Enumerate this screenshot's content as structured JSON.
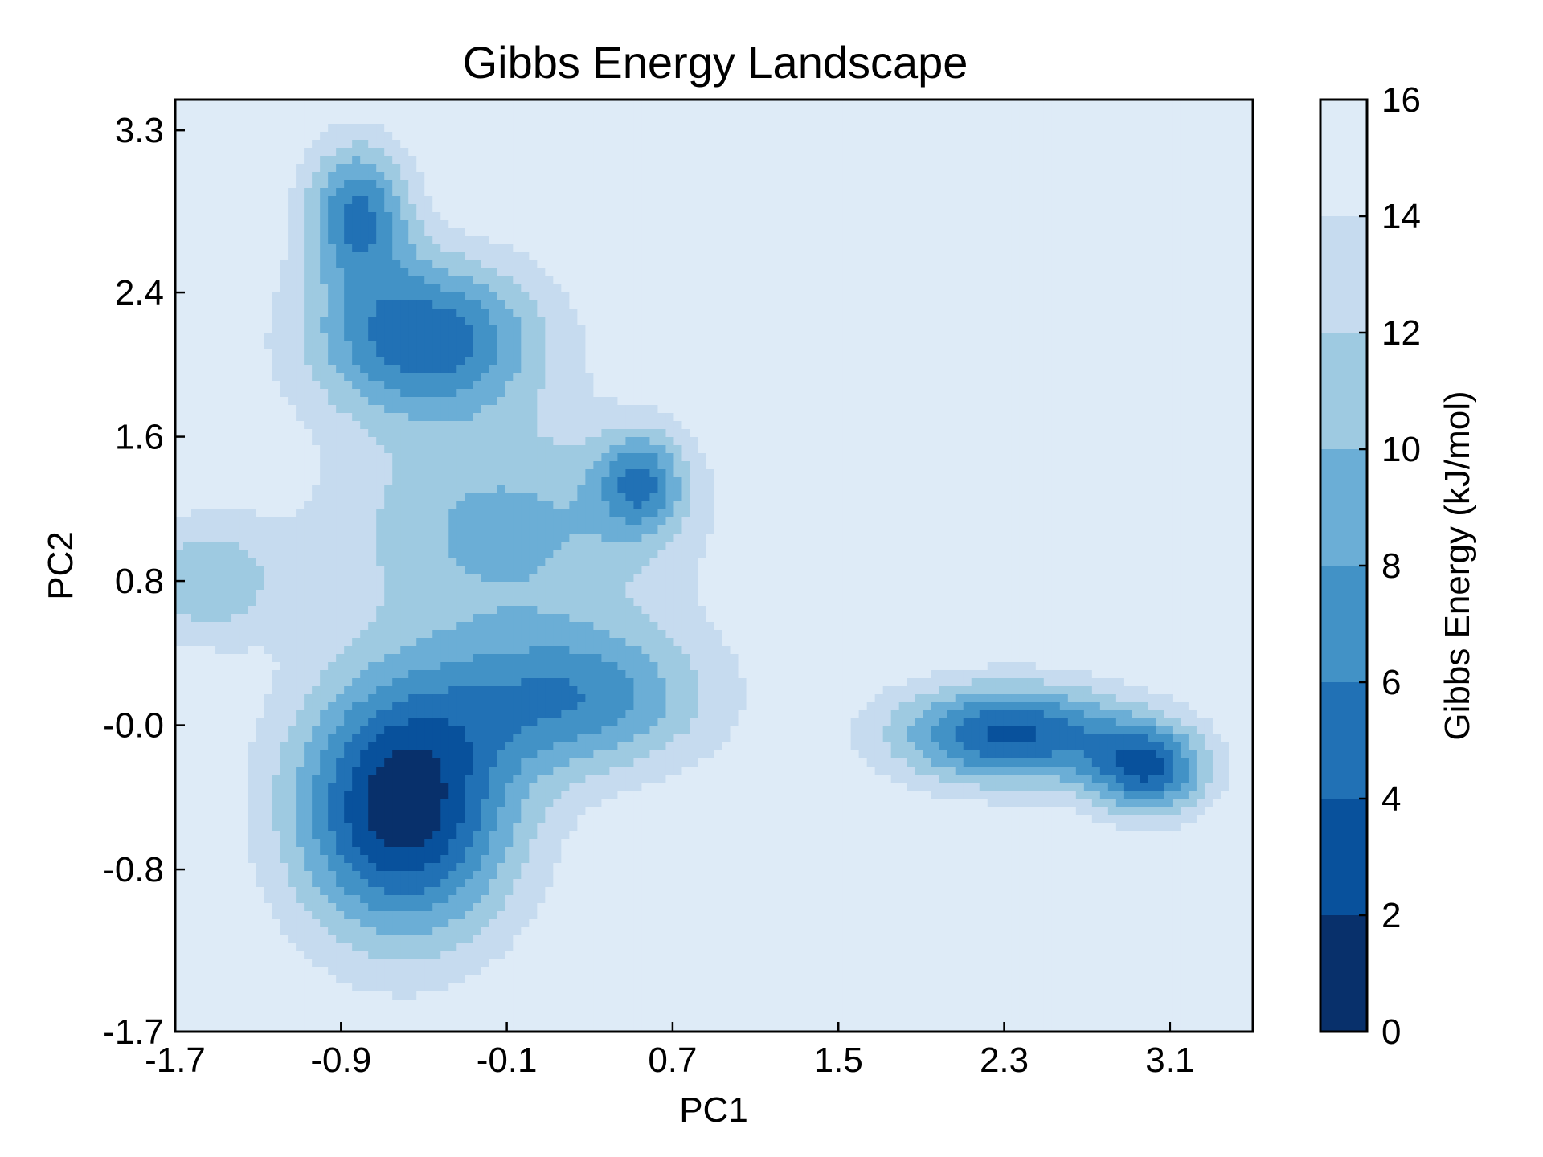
{
  "chart_data": {
    "type": "contour",
    "title": "Gibbs Energy Landscape",
    "xlabel": "PC1",
    "ylabel": "PC2",
    "xlim": [
      -1.7,
      3.5
    ],
    "ylim": [
      -1.7,
      3.47
    ],
    "x_ticks": [
      -1.7,
      -0.9,
      -0.1,
      0.7,
      1.5,
      2.3,
      3.1
    ],
    "x_tick_labels": [
      "-1.7",
      "-0.9",
      "-0.1",
      "0.7",
      "1.5",
      "2.3",
      "3.1"
    ],
    "y_ticks": [
      -1.7,
      -0.8,
      0.0,
      0.8,
      1.6,
      2.4,
      3.3
    ],
    "y_tick_labels": [
      "-1.7",
      "-0.8",
      "-0.0",
      "0.8",
      "1.6",
      "2.4",
      "3.3"
    ],
    "colorbar": {
      "label": "Gibbs Energy (kJ/mol)",
      "levels": [
        0,
        2,
        4,
        6,
        8,
        10,
        12,
        14,
        16
      ],
      "tick_labels": [
        "0",
        "2",
        "4",
        "6",
        "8",
        "10",
        "12",
        "14",
        "16"
      ],
      "colors": [
        "#08306b",
        "#08519c",
        "#2171b5",
        "#4292c6",
        "#6baed6",
        "#9ecae1",
        "#c6dbef",
        "#deebf7"
      ]
    },
    "basins": [
      {
        "x": -0.6,
        "y": -0.45,
        "min_energy": 0.5,
        "sx": 0.38,
        "sy": 0.52
      },
      {
        "x": 2.33,
        "y": -0.05,
        "min_energy": 3.5,
        "sx": 0.4,
        "sy": 0.2
      },
      {
        "x": 3.0,
        "y": -0.25,
        "min_energy": 5.0,
        "sx": 0.2,
        "sy": 0.18
      },
      {
        "x": -0.5,
        "y": 2.15,
        "min_energy": 4.5,
        "sx": 0.4,
        "sy": 0.32
      },
      {
        "x": -0.82,
        "y": 2.85,
        "min_energy": 6.0,
        "sx": 0.18,
        "sy": 0.28
      },
      {
        "x": 0.55,
        "y": 1.35,
        "min_energy": 8.0,
        "sx": 0.15,
        "sy": 0.2
      },
      {
        "x": -0.1,
        "y": 1.1,
        "min_energy": 9.5,
        "sx": 0.6,
        "sy": 0.42
      },
      {
        "x": 0.25,
        "y": 0.15,
        "min_energy": 7.0,
        "sx": 0.45,
        "sy": 0.3
      },
      {
        "x": -1.55,
        "y": 0.8,
        "min_energy": 10.5,
        "sx": 0.25,
        "sy": 0.25
      }
    ]
  }
}
